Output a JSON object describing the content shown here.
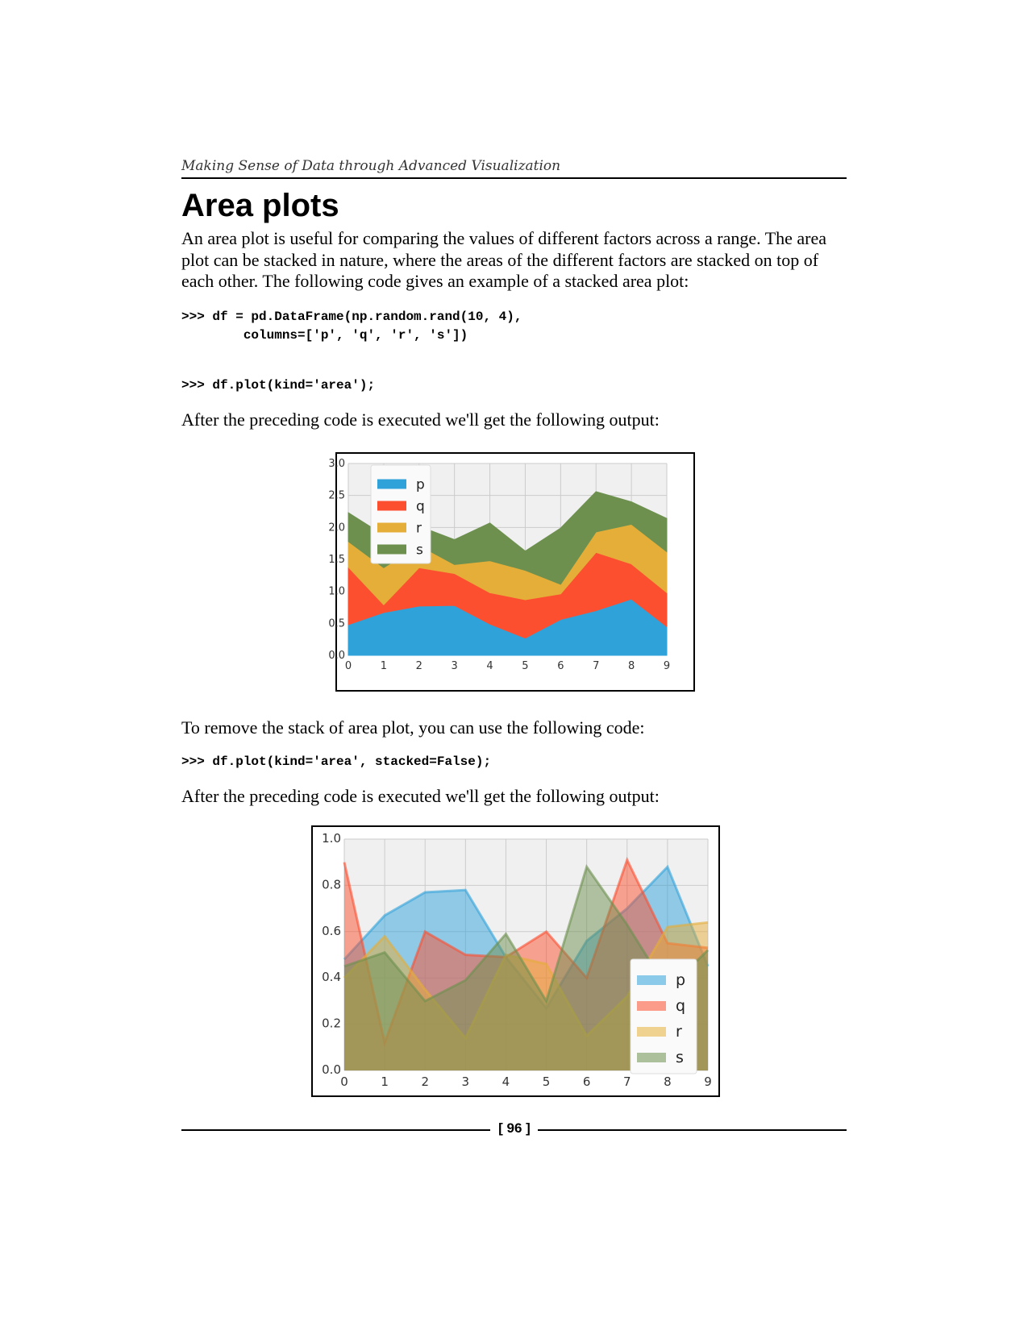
{
  "header": {
    "running_title": "Making Sense of Data through Advanced Visualization"
  },
  "section": {
    "title": "Area plots"
  },
  "paragraphs": {
    "intro": "An area plot is useful for comparing the values of different factors across a range. The area plot can be stacked in nature, where the areas of the different factors are stacked on top of each other. The following code gives an example of a stacked area plot:",
    "output1": "After the preceding code is executed we'll get the following output:",
    "remove_stack": "To remove the stack of area plot, you can use the following code:",
    "output2": "After the preceding code is executed we'll get the following output:"
  },
  "code": {
    "block1_line1": ">>> df = pd.DataFrame(np.random.rand(10, 4),",
    "block1_line2": "        columns=['p', 'q', 'r', 's'])",
    "block2": ">>> df.plot(kind='area');",
    "block3": ">>> df.plot(kind='area', stacked=False);"
  },
  "footer": {
    "page_number": "[ 96 ]"
  },
  "chart_data": [
    {
      "type": "area",
      "stacked": true,
      "x": [
        0,
        1,
        2,
        3,
        4,
        5,
        6,
        7,
        8,
        9
      ],
      "xlim": [
        0,
        9
      ],
      "ylim": [
        0,
        3.0
      ],
      "x_ticks": [
        "0",
        "1",
        "2",
        "3",
        "4",
        "5",
        "6",
        "7",
        "8",
        "9"
      ],
      "y_ticks": [
        "0.0",
        "0.5",
        "1.0",
        "1.5",
        "2.0",
        "2.5",
        "3.0"
      ],
      "y_tick_values": [
        0,
        0.5,
        1.0,
        1.5,
        2.0,
        2.5,
        3.0
      ],
      "grid": true,
      "legend_position": "top-left",
      "series": [
        {
          "name": "p",
          "color": "#30a2da",
          "values": [
            0.48,
            0.67,
            0.77,
            0.78,
            0.49,
            0.27,
            0.56,
            0.7,
            0.88,
            0.45
          ]
        },
        {
          "name": "q",
          "color": "#fc4f30",
          "values": [
            0.9,
            0.12,
            0.6,
            0.5,
            0.49,
            0.6,
            0.4,
            0.91,
            0.55,
            0.53
          ]
        },
        {
          "name": "r",
          "color": "#e5ae38",
          "values": [
            0.4,
            0.58,
            0.35,
            0.14,
            0.5,
            0.46,
            0.15,
            0.32,
            0.62,
            0.64
          ]
        },
        {
          "name": "s",
          "color": "#6d904f",
          "values": [
            0.45,
            0.51,
            0.3,
            0.39,
            0.59,
            0.3,
            0.88,
            0.63,
            0.35,
            0.52
          ]
        }
      ]
    },
    {
      "type": "area",
      "stacked": false,
      "x": [
        0,
        1,
        2,
        3,
        4,
        5,
        6,
        7,
        8,
        9
      ],
      "xlim": [
        0,
        9
      ],
      "ylim": [
        0,
        1.0
      ],
      "x_ticks": [
        "0",
        "1",
        "2",
        "3",
        "4",
        "5",
        "6",
        "7",
        "8",
        "9"
      ],
      "y_ticks": [
        "0.0",
        "0.2",
        "0.4",
        "0.6",
        "0.8",
        "1.0"
      ],
      "y_tick_values": [
        0,
        0.2,
        0.4,
        0.6,
        0.8,
        1.0
      ],
      "grid": true,
      "legend_position": "center-right",
      "series": [
        {
          "name": "p",
          "color": "#30a2da",
          "values": [
            0.48,
            0.67,
            0.77,
            0.78,
            0.49,
            0.27,
            0.56,
            0.7,
            0.88,
            0.45
          ]
        },
        {
          "name": "q",
          "color": "#fc4f30",
          "values": [
            0.9,
            0.12,
            0.6,
            0.5,
            0.49,
            0.6,
            0.4,
            0.91,
            0.55,
            0.53
          ]
        },
        {
          "name": "r",
          "color": "#e5ae38",
          "values": [
            0.4,
            0.58,
            0.35,
            0.14,
            0.5,
            0.46,
            0.15,
            0.32,
            0.62,
            0.64
          ]
        },
        {
          "name": "s",
          "color": "#6d904f",
          "values": [
            0.45,
            0.51,
            0.3,
            0.39,
            0.59,
            0.3,
            0.88,
            0.63,
            0.35,
            0.52
          ]
        }
      ]
    }
  ]
}
